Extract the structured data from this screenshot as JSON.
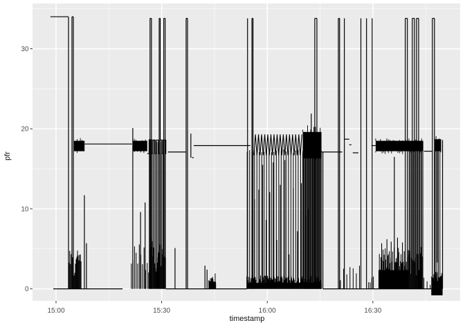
{
  "figure": {
    "panel_bg": "#EBEBEB",
    "grid_major_color": "#FFFFFF",
    "grid_minor_color": "#FFFFFF",
    "line_color": "#000000",
    "tick_mark_color": "#333333",
    "tick_label_color": "#4D4D4D",
    "axis_title_color": "#111111"
  },
  "chart_data": {
    "type": "line",
    "title": "",
    "xlabel": "timestamp",
    "ylabel": "pfr",
    "x_unit": "minutes after 15:00",
    "xlim": [
      -6.68,
      114.8
    ],
    "ylim": [
      -1.5,
      35.66
    ],
    "grid": true,
    "legend": "none",
    "x_ticks": [
      {
        "t": 0,
        "label": "15:00"
      },
      {
        "t": 30,
        "label": "15:30"
      },
      {
        "t": 60,
        "label": "16:00"
      },
      {
        "t": 90,
        "label": "16:30"
      }
    ],
    "x_minor_ticks": [
      15,
      45,
      75,
      105
    ],
    "y_ticks": [
      {
        "v": 0,
        "label": "0"
      },
      {
        "v": 10,
        "label": "10"
      },
      {
        "v": 20,
        "label": "20"
      },
      {
        "v": 30,
        "label": "30"
      }
    ],
    "y_minor_ticks": [
      5,
      15,
      25,
      35
    ],
    "series_name": "pfr",
    "segments": {
      "flats": [
        [
          -1.6,
          3.5,
          34.0
        ],
        [
          -0.8,
          18.9,
          0.0
        ],
        [
          4.52,
          4.92,
          34.0
        ],
        [
          8.1,
          21.6,
          18.1
        ],
        [
          26.7,
          27.1,
          33.8
        ],
        [
          29.3,
          29.6,
          33.8
        ],
        [
          30.6,
          31.0,
          33.8
        ],
        [
          31.2,
          34.8,
          0.0
        ],
        [
          31.8,
          36.9,
          17.1
        ],
        [
          36.95,
          37.35,
          33.8
        ],
        [
          38.6,
          39.1,
          16.4
        ],
        [
          39.1,
          55.2,
          17.9
        ],
        [
          34.8,
          54.2,
          0.0
        ],
        [
          55.65,
          55.95,
          33.8
        ],
        [
          73.5,
          74.1,
          33.8
        ],
        [
          74.7,
          81.3,
          17.1
        ],
        [
          75.8,
          109.8,
          0.0
        ],
        [
          80.2,
          80.55,
          33.8
        ],
        [
          81.9,
          83.3,
          18.7
        ],
        [
          83.3,
          83.9,
          18.0
        ],
        [
          84.3,
          85.9,
          17.0
        ],
        [
          89.6,
          90.8,
          17.9
        ],
        [
          99.2,
          99.8,
          33.8
        ],
        [
          101.2,
          101.8,
          33.8
        ],
        [
          102.4,
          103.0,
          33.8
        ],
        [
          104.5,
          106.9,
          17.2
        ],
        [
          106.9,
          107.5,
          33.8
        ]
      ],
      "vlines": [
        [
          3.54,
          0,
          34.0
        ],
        [
          4.52,
          0,
          34.0
        ],
        [
          4.92,
          0,
          34.0
        ],
        [
          8.05,
          0,
          11.7
        ],
        [
          8.64,
          0,
          5.7
        ],
        [
          21.8,
          0,
          20.1
        ],
        [
          24.0,
          0,
          9.6
        ],
        [
          25.3,
          0,
          10.8
        ],
        [
          26.7,
          0,
          33.8
        ],
        [
          27.1,
          0,
          33.8
        ],
        [
          29.3,
          0,
          33.8
        ],
        [
          29.6,
          0,
          33.8
        ],
        [
          30.6,
          0,
          33.8
        ],
        [
          31.0,
          0,
          33.8
        ],
        [
          33.8,
          0,
          5.1
        ],
        [
          36.95,
          0,
          33.8
        ],
        [
          37.35,
          0,
          33.8
        ],
        [
          38.3,
          16.4,
          19.4
        ],
        [
          42.3,
          0,
          2.9
        ],
        [
          42.9,
          0,
          2.4
        ],
        [
          54.4,
          0,
          33.8
        ],
        [
          55.65,
          0,
          33.8
        ],
        [
          55.95,
          0,
          33.8
        ],
        [
          72.5,
          16.5,
          21.9
        ],
        [
          73.5,
          0,
          33.8
        ],
        [
          74.1,
          0,
          33.8
        ],
        [
          75.8,
          0,
          17.1
        ],
        [
          80.2,
          0,
          33.8
        ],
        [
          80.55,
          0,
          33.8
        ],
        [
          81.9,
          0,
          33.8
        ],
        [
          86.6,
          0,
          33.8
        ],
        [
          88.2,
          0,
          33.8
        ],
        [
          89.8,
          0,
          33.8
        ],
        [
          96.1,
          0,
          16.5
        ],
        [
          99.2,
          0,
          33.8
        ],
        [
          99.8,
          0,
          33.8
        ],
        [
          101.2,
          0,
          33.8
        ],
        [
          101.8,
          0,
          33.8
        ],
        [
          102.4,
          0,
          33.8
        ],
        [
          103.0,
          0,
          33.8
        ],
        [
          106.9,
          0,
          33.8
        ],
        [
          107.5,
          0,
          33.8
        ],
        [
          108.1,
          3.3,
          18.0
        ],
        [
          108.5,
          3.3,
          18.0
        ],
        [
          109.8,
          0,
          18.6
        ]
      ],
      "bands": [
        [
          5.1,
          8.1,
          17.2,
          18.5
        ],
        [
          21.8,
          25.9,
          17.2,
          18.5
        ],
        [
          70.1,
          75.4,
          16.3,
          19.6
        ],
        [
          90.8,
          104.3,
          17.2,
          18.5
        ],
        [
          107.5,
          109.4,
          17.2,
          18.7
        ]
      ],
      "bushes": [
        {
          "t0": 3.7,
          "t1": 7.3,
          "vmax": 4.8,
          "density": "dense"
        },
        {
          "t0": 21.4,
          "t1": 26.3,
          "vmax": 5.8,
          "density": "medium"
        },
        {
          "t0": 26.3,
          "t1": 31.2,
          "vmax": 6.5,
          "density": "dense"
        },
        {
          "t0": 43.4,
          "t1": 45.4,
          "vmax": 2.0,
          "density": "solid"
        },
        {
          "t0": 54.2,
          "t1": 75.4,
          "vmax": 1.7,
          "density": "solid"
        },
        {
          "t0": 80.8,
          "t1": 86.5,
          "vmax": 3.0,
          "density": "sparse"
        },
        {
          "t0": 88.8,
          "t1": 90.6,
          "vmax": 2.0,
          "density": "medium"
        },
        {
          "t0": 91.7,
          "t1": 100.3,
          "vmax": 5.2,
          "density": "solid"
        },
        {
          "t0": 100.3,
          "t1": 104.3,
          "vmax": 5.5,
          "density": "dense"
        },
        {
          "t0": 104.5,
          "t1": 106.9,
          "vmax": 1.5,
          "density": "sparse"
        },
        {
          "t0": 106.7,
          "t1": 109.8,
          "vmax": 2.2,
          "density": "solid",
          "vmin": -0.8
        }
      ],
      "combs": [
        [
          26.5,
          31.4,
          0,
          18.5,
          0.35
        ],
        [
          54.3,
          75.3,
          0.8,
          17.2,
          0.69
        ],
        [
          70.1,
          75.4,
          0,
          17.2,
          0.25
        ],
        [
          100.3,
          104.3,
          0,
          18.4,
          0.3
        ],
        [
          107.7,
          109.4,
          0,
          18.5,
          0.45
        ]
      ],
      "zigzags": [
        {
          "t0": 25.9,
          "t1": 31.2,
          "vlo": 16.9,
          "vhi": 18.6,
          "period": 1.05,
          "shape": "square"
        },
        {
          "t0": 56.2,
          "t1": 70.1,
          "vlo": 16.7,
          "vhi": 19.3,
          "period": 0.88,
          "shape": "triangle"
        },
        {
          "t0": 70.1,
          "t1": 75.3,
          "vlo": 16.3,
          "vhi": 19.6,
          "period": 0.6,
          "shape": "triangle"
        }
      ],
      "spikes": [
        [
          56.4,
          11.2
        ],
        [
          57.6,
          12.4
        ],
        [
          58.7,
          15.5
        ],
        [
          59.7,
          8.6
        ],
        [
          60.7,
          12.1
        ],
        [
          61.7,
          15.8
        ],
        [
          62.7,
          6.1
        ],
        [
          63.7,
          13.0
        ],
        [
          65.0,
          16.1
        ],
        [
          66.2,
          4.3
        ],
        [
          67.4,
          12.6
        ],
        [
          68.6,
          7.2
        ],
        [
          69.7,
          13.2
        ],
        [
          70.9,
          9.0
        ],
        [
          71.8,
          10.0
        ],
        [
          73.0,
          8.0
        ],
        [
          92.5,
          5.7
        ],
        [
          94.0,
          6.2
        ],
        [
          95.2,
          5.9
        ],
        [
          97.0,
          6.4
        ],
        [
          98.4,
          5.8
        ]
      ]
    }
  }
}
